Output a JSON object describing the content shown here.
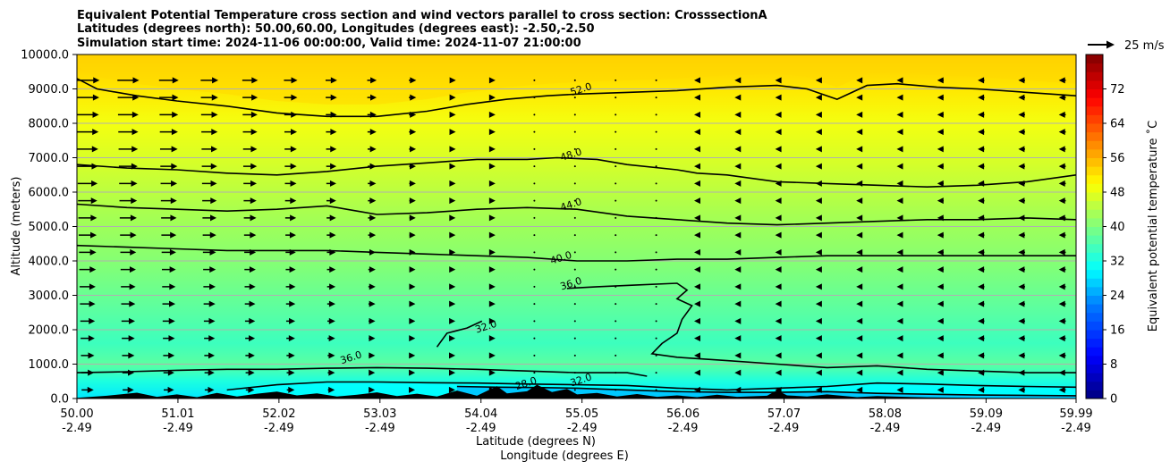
{
  "chart_data": {
    "type": "heatmap",
    "title_lines": [
      "Equivalent Potential Temperature cross section and wind vectors parallel to cross section: CrosssectionA",
      "Latitudes (degrees north): 50.00,60.00, Longitudes (degrees east): -2.50,-2.50",
      "Simulation start time: 2024-11-06 00:00:00, Valid time: 2024-11-07 21:00:00"
    ],
    "xlabel_lines": [
      "Latitude (degrees N)",
      "Longitude (degrees E)"
    ],
    "ylabel": "Altitude (meters)",
    "ylim": [
      0,
      10000
    ],
    "y_ticks": [
      0,
      1000,
      2000,
      3000,
      4000,
      5000,
      6000,
      7000,
      8000,
      9000,
      10000
    ],
    "y_tick_labels": [
      "0.0",
      "1000.0",
      "2000.0",
      "3000.0",
      "4000.0",
      "5000.0",
      "6000.0",
      "7000.0",
      "8000.0",
      "9000.0",
      "10000.0"
    ],
    "xlim": [
      50.0,
      59.99
    ],
    "x_ticks": [
      50.0,
      51.01,
      52.02,
      53.03,
      54.04,
      55.05,
      56.06,
      57.07,
      58.08,
      59.09,
      59.99
    ],
    "x_tick_labels": [
      [
        "50.00",
        "-2.49"
      ],
      [
        "51.01",
        "-2.49"
      ],
      [
        "52.02",
        "-2.49"
      ],
      [
        "53.03",
        "-2.49"
      ],
      [
        "54.04",
        "-2.49"
      ],
      [
        "55.05",
        "-2.49"
      ],
      [
        "56.06",
        "-2.49"
      ],
      [
        "57.07",
        "-2.49"
      ],
      [
        "58.08",
        "-2.49"
      ],
      [
        "59.09",
        "-2.49"
      ],
      [
        "59.99",
        "-2.49"
      ]
    ],
    "grid": "horizontal",
    "colorbar": {
      "label": "Equivalent potential temperature ˚C",
      "range": [
        0,
        80
      ],
      "ticks": [
        0,
        8,
        16,
        24,
        32,
        40,
        48,
        56,
        64,
        72
      ],
      "tick_labels": [
        "0",
        "8",
        "16",
        "24",
        "32",
        "40",
        "48",
        "56",
        "64",
        "72"
      ],
      "stops": [
        {
          "v": 0,
          "color": "#00007f"
        },
        {
          "v": 10,
          "color": "#0000ff"
        },
        {
          "v": 22,
          "color": "#007fff"
        },
        {
          "v": 30,
          "color": "#00ffff"
        },
        {
          "v": 40,
          "color": "#7fff7f"
        },
        {
          "v": 50,
          "color": "#ffff00"
        },
        {
          "v": 60,
          "color": "#ff7f00"
        },
        {
          "v": 70,
          "color": "#ff0000"
        },
        {
          "v": 80,
          "color": "#7f0000"
        }
      ]
    },
    "quiver_key": {
      "label": "25 m/s",
      "placement": "top-right"
    },
    "contours": [
      {
        "value": 52,
        "label": "52.0",
        "label_at": [
          55.05,
          8900
        ],
        "points": [
          [
            50.0,
            9300
          ],
          [
            50.2,
            9000
          ],
          [
            50.6,
            8800
          ],
          [
            51.0,
            8650
          ],
          [
            51.5,
            8500
          ],
          [
            52.0,
            8300
          ],
          [
            52.5,
            8200
          ],
          [
            53.0,
            8200
          ],
          [
            53.5,
            8350
          ],
          [
            53.9,
            8550
          ],
          [
            54.3,
            8700
          ],
          [
            54.7,
            8800
          ],
          [
            55.0,
            8850
          ],
          [
            55.5,
            8900
          ],
          [
            56.0,
            8950
          ],
          [
            56.5,
            9050
          ],
          [
            57.0,
            9100
          ],
          [
            57.3,
            9000
          ],
          [
            57.6,
            8700
          ],
          [
            57.9,
            9100
          ],
          [
            58.2,
            9150
          ],
          [
            58.6,
            9050
          ],
          [
            59.0,
            9000
          ],
          [
            59.5,
            8900
          ],
          [
            59.99,
            8800
          ]
        ]
      },
      {
        "value": 48,
        "label": "48.0",
        "label_at": [
          54.95,
          7000
        ],
        "points": [
          [
            50.0,
            6800
          ],
          [
            50.5,
            6700
          ],
          [
            51.0,
            6650
          ],
          [
            51.5,
            6550
          ],
          [
            52.0,
            6500
          ],
          [
            52.5,
            6600
          ],
          [
            53.0,
            6750
          ],
          [
            53.5,
            6850
          ],
          [
            54.0,
            6950
          ],
          [
            54.5,
            6950
          ],
          [
            54.8,
            7000
          ],
          [
            55.2,
            6950
          ],
          [
            55.5,
            6800
          ],
          [
            56.0,
            6650
          ],
          [
            56.2,
            6550
          ],
          [
            56.5,
            6500
          ],
          [
            57.0,
            6300
          ],
          [
            57.5,
            6250
          ],
          [
            58.0,
            6200
          ],
          [
            58.5,
            6150
          ],
          [
            59.0,
            6200
          ],
          [
            59.5,
            6300
          ],
          [
            59.99,
            6500
          ]
        ]
      },
      {
        "value": 44,
        "label": "44.0",
        "label_at": [
          54.95,
          5550
        ],
        "points": [
          [
            50.0,
            5650
          ],
          [
            50.5,
            5550
          ],
          [
            51.0,
            5500
          ],
          [
            51.5,
            5450
          ],
          [
            52.0,
            5500
          ],
          [
            52.5,
            5600
          ],
          [
            52.8,
            5450
          ],
          [
            53.0,
            5350
          ],
          [
            53.5,
            5400
          ],
          [
            54.0,
            5500
          ],
          [
            54.5,
            5550
          ],
          [
            55.0,
            5500
          ],
          [
            55.5,
            5300
          ],
          [
            56.0,
            5200
          ],
          [
            56.5,
            5100
          ],
          [
            57.0,
            5050
          ],
          [
            57.5,
            5100
          ],
          [
            58.0,
            5150
          ],
          [
            58.5,
            5200
          ],
          [
            59.0,
            5200
          ],
          [
            59.5,
            5250
          ],
          [
            59.99,
            5200
          ]
        ]
      },
      {
        "value": 40,
        "label": "40.0",
        "label_at": [
          54.85,
          4000
        ],
        "points": [
          [
            50.0,
            4450
          ],
          [
            50.5,
            4400
          ],
          [
            51.0,
            4350
          ],
          [
            51.5,
            4300
          ],
          [
            52.0,
            4300
          ],
          [
            52.5,
            4300
          ],
          [
            53.0,
            4250
          ],
          [
            53.5,
            4200
          ],
          [
            54.0,
            4150
          ],
          [
            54.5,
            4100
          ],
          [
            55.0,
            4000
          ],
          [
            55.5,
            4000
          ],
          [
            56.0,
            4050
          ],
          [
            56.5,
            4050
          ],
          [
            57.0,
            4100
          ],
          [
            57.5,
            4150
          ],
          [
            58.0,
            4150
          ],
          [
            58.5,
            4150
          ],
          [
            59.0,
            4150
          ],
          [
            59.5,
            4150
          ],
          [
            59.99,
            4150
          ]
        ]
      },
      {
        "value": 36,
        "label": "36.0",
        "label_at": [
          54.95,
          3250
        ],
        "points": [
          [
            54.9,
            3200
          ],
          [
            55.2,
            3250
          ],
          [
            55.6,
            3300
          ],
          [
            56.0,
            3350
          ],
          [
            56.1,
            3150
          ],
          [
            56.0,
            2900
          ],
          [
            56.15,
            2700
          ],
          [
            56.05,
            2300
          ],
          [
            56.0,
            1900
          ],
          [
            55.85,
            1600
          ],
          [
            55.75,
            1300
          ],
          [
            56.0,
            1200
          ],
          [
            56.5,
            1100
          ],
          [
            57.0,
            1000
          ],
          [
            57.5,
            900
          ],
          [
            58.0,
            950
          ],
          [
            58.5,
            850
          ],
          [
            59.0,
            800
          ],
          [
            59.5,
            750
          ],
          [
            59.99,
            750
          ]
        ]
      },
      {
        "value": 36,
        "label": "36.0",
        "label_at": [
          52.75,
          1100
        ],
        "points": [
          [
            50.0,
            750
          ],
          [
            50.5,
            780
          ],
          [
            51.0,
            820
          ],
          [
            51.5,
            850
          ],
          [
            52.0,
            850
          ],
          [
            52.5,
            880
          ],
          [
            53.0,
            900
          ],
          [
            53.5,
            880
          ],
          [
            54.0,
            850
          ],
          [
            54.5,
            800
          ],
          [
            55.0,
            750
          ],
          [
            55.5,
            750
          ],
          [
            55.7,
            650
          ]
        ]
      },
      {
        "value": 32,
        "label": "32.0",
        "label_at": [
          54.1,
          2000
        ],
        "points": [
          [
            53.6,
            1500
          ],
          [
            53.7,
            1900
          ],
          [
            53.9,
            2050
          ],
          [
            54.05,
            2250
          ]
        ]
      },
      {
        "value": 32,
        "label": "32.0",
        "label_at": [
          55.05,
          450
        ],
        "points": [
          [
            51.5,
            250
          ],
          [
            52.0,
            400
          ],
          [
            52.5,
            480
          ],
          [
            53.0,
            480
          ],
          [
            53.5,
            460
          ],
          [
            54.0,
            450
          ],
          [
            54.5,
            420
          ],
          [
            55.0,
            400
          ],
          [
            55.5,
            380
          ],
          [
            56.0,
            300
          ],
          [
            56.5,
            250
          ],
          [
            57.0,
            300
          ],
          [
            57.5,
            350
          ],
          [
            58.0,
            450
          ],
          [
            58.5,
            420
          ],
          [
            59.0,
            380
          ],
          [
            59.5,
            350
          ],
          [
            59.99,
            330
          ]
        ]
      },
      {
        "value": 28,
        "label": "28.0",
        "label_at": [
          54.5,
          350
        ],
        "points": [
          [
            53.8,
            350
          ],
          [
            54.2,
            330
          ],
          [
            54.6,
            320
          ],
          [
            55.0,
            300
          ],
          [
            55.5,
            250
          ],
          [
            56.0,
            200
          ],
          [
            56.5,
            180
          ],
          [
            57.0,
            180
          ],
          [
            57.5,
            200
          ],
          [
            58.0,
            150
          ],
          [
            59.0,
            100
          ],
          [
            59.99,
            80
          ]
        ]
      }
    ],
    "terrain_peaks": [
      [
        50.0,
        20
      ],
      [
        50.3,
        80
      ],
      [
        50.6,
        170
      ],
      [
        50.8,
        50
      ],
      [
        51.0,
        120
      ],
      [
        51.2,
        40
      ],
      [
        51.4,
        160
      ],
      [
        51.6,
        60
      ],
      [
        51.8,
        140
      ],
      [
        52.0,
        200
      ],
      [
        52.2,
        90
      ],
      [
        52.4,
        150
      ],
      [
        52.6,
        60
      ],
      [
        52.8,
        110
      ],
      [
        53.0,
        180
      ],
      [
        53.2,
        70
      ],
      [
        53.4,
        140
      ],
      [
        53.6,
        60
      ],
      [
        53.8,
        230
      ],
      [
        54.0,
        80
      ],
      [
        54.2,
        360
      ],
      [
        54.3,
        150
      ],
      [
        54.5,
        210
      ],
      [
        54.6,
        400
      ],
      [
        54.75,
        190
      ],
      [
        54.9,
        280
      ],
      [
        55.0,
        120
      ],
      [
        55.2,
        160
      ],
      [
        55.4,
        60
      ],
      [
        55.6,
        130
      ],
      [
        55.8,
        50
      ],
      [
        56.0,
        90
      ],
      [
        56.2,
        40
      ],
      [
        56.4,
        110
      ],
      [
        56.6,
        50
      ],
      [
        56.9,
        80
      ],
      [
        57.0,
        240
      ],
      [
        57.1,
        90
      ],
      [
        57.3,
        60
      ],
      [
        57.5,
        120
      ],
      [
        57.8,
        40
      ],
      [
        58.0,
        70
      ],
      [
        58.5,
        30
      ],
      [
        59.0,
        20
      ],
      [
        59.99,
        10
      ]
    ]
  }
}
